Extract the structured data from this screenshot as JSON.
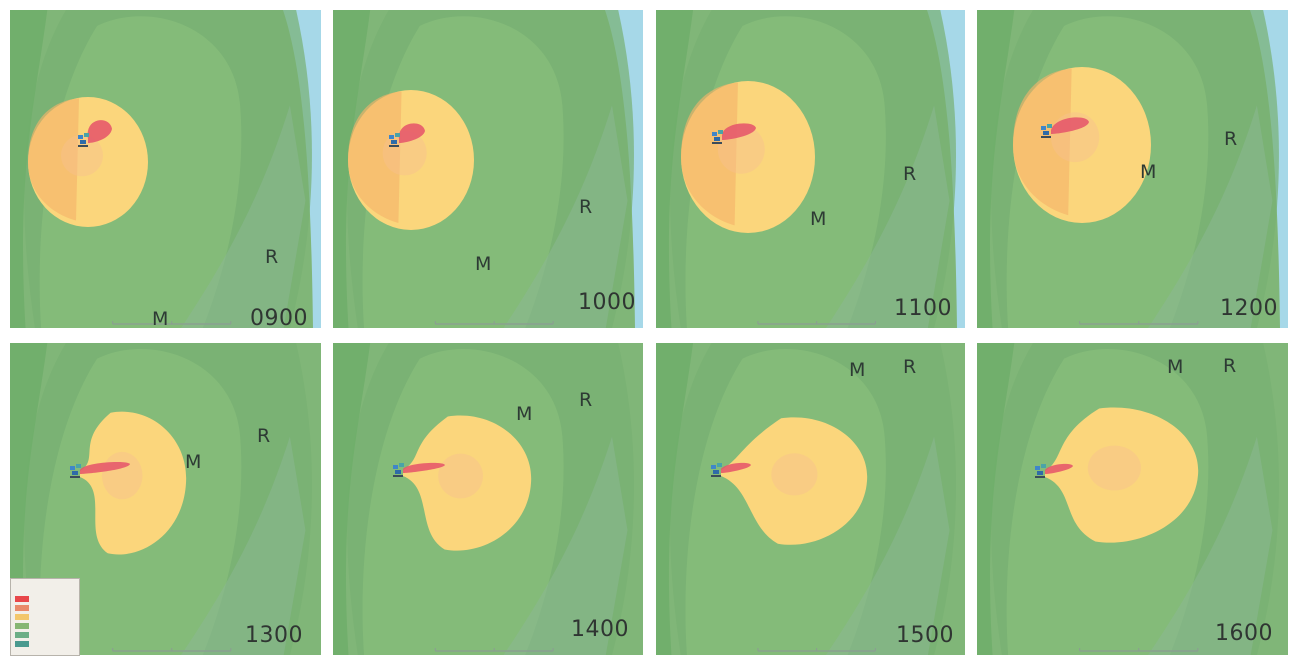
{
  "panels": [
    {
      "time": "0900",
      "m": "M",
      "r": "R"
    },
    {
      "time": "1000",
      "m": "M",
      "r": "R"
    },
    {
      "time": "1100",
      "m": "M",
      "r": "R"
    },
    {
      "time": "1200",
      "m": "M",
      "r": "R"
    },
    {
      "time": "1300",
      "m": "M",
      "r": "R"
    },
    {
      "time": "1400",
      "m": "M",
      "r": "R"
    },
    {
      "time": "1500",
      "m": "M",
      "r": "R"
    },
    {
      "time": "1600",
      "m": "M",
      "r": "R"
    }
  ],
  "legend": {
    "swatches": [
      "#e8474a",
      "#e98a6a",
      "#f3c76b",
      "#86b673",
      "#6cae86",
      "#4a9a8f"
    ]
  },
  "colors": {
    "water": "#a6d8e8",
    "outer_green": "#80b678",
    "land_green": "#6fae6a",
    "inner_green": "#8cc27e",
    "plume_yellow": "#fbd67c",
    "plume_orange": "#f4b36a",
    "plume_core": "#ee9a86",
    "source_red": "#e5526a",
    "station_blue": "#3f86c9"
  }
}
